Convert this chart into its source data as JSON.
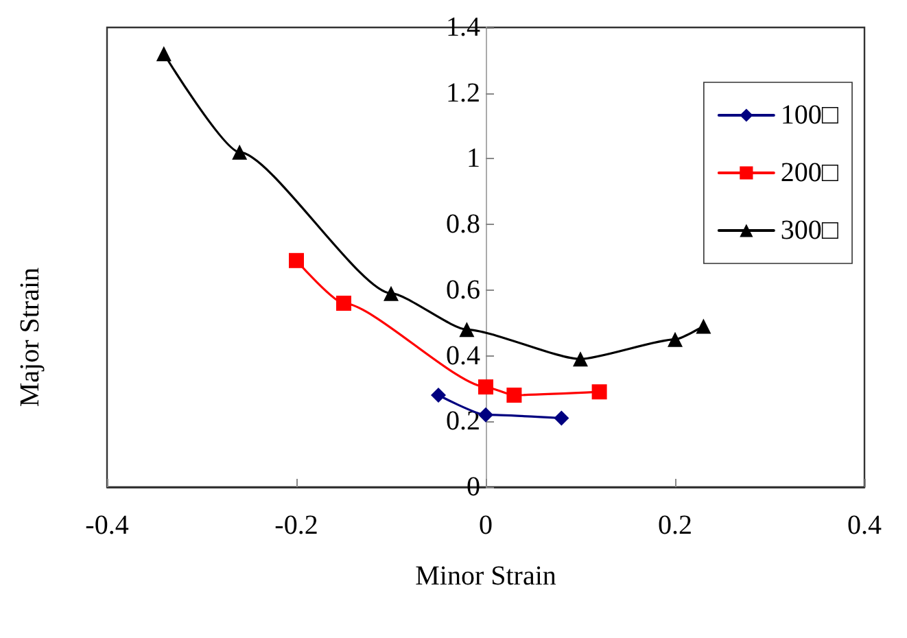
{
  "chart_data": {
    "type": "line",
    "xlabel": "Minor Strain",
    "ylabel": "Major Strain",
    "xlim": [
      -0.4,
      0.4
    ],
    "xticks": [
      -0.4,
      -0.2,
      0,
      0.2,
      0.4
    ],
    "ylim": [
      0,
      1.4
    ],
    "yticks": [
      0,
      0.2,
      0.4,
      0.6,
      0.8,
      1,
      1.2,
      1.4
    ],
    "grid": false,
    "legend": "top right",
    "series": [
      {
        "name": "100□",
        "color": "#000080",
        "marker": "diamond",
        "x": [
          -0.05,
          0,
          0.08
        ],
        "values": [
          0.28,
          0.22,
          0.21
        ]
      },
      {
        "name": "200□",
        "color": "#ff0000",
        "marker": "square",
        "x": [
          -0.2,
          -0.15,
          0,
          0.03,
          0.12
        ],
        "values": [
          0.69,
          0.56,
          0.305,
          0.28,
          0.29
        ]
      },
      {
        "name": "300□",
        "color": "#000000",
        "marker": "triangle",
        "x": [
          -0.34,
          -0.26,
          -0.1,
          -0.02,
          0.1,
          0.2,
          0.23
        ],
        "values": [
          1.32,
          1.02,
          0.59,
          0.48,
          0.39,
          0.45,
          0.49
        ]
      }
    ]
  }
}
